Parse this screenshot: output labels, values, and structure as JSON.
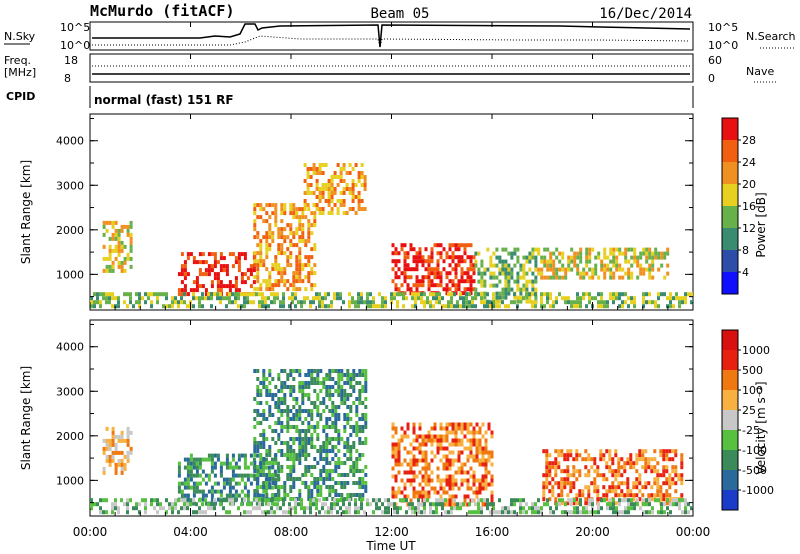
{
  "header": {
    "station": "McMurdo (fitACF)",
    "beam": "Beam 05",
    "date": "16/Dec/2014"
  },
  "status_panels": {
    "nsky_label": "N.Sky",
    "nsearch_label": "N.Search",
    "noise_left_ticks": [
      "10^5",
      "10^0"
    ],
    "noise_right_ticks": [
      "10^5",
      "10^0"
    ],
    "freq_label_line1": "Freq.",
    "freq_label_line2": "[MHz]",
    "freq_ticks": [
      "18",
      "8"
    ],
    "nave_label": "Nave",
    "nave_ticks": [
      "60",
      "0"
    ],
    "cpid_label": "CPID",
    "cpid_text": "normal (fast) 151 RF"
  },
  "chart_data": [
    {
      "type": "heatmap",
      "name": "power",
      "ylabel": "Slant Range [km]",
      "yticks": [
        "1000",
        "2000",
        "3000",
        "4000"
      ],
      "ylim": [
        200,
        4600
      ],
      "xlim_hours": [
        0,
        24
      ],
      "colorbar": {
        "label": "Power [dB]",
        "ticks": [
          "4",
          "8",
          "12",
          "16",
          "20",
          "24",
          "28"
        ],
        "colors": [
          "#1010ff",
          "#2c4ea8",
          "#3a8c70",
          "#68b04a",
          "#e8d020",
          "#f09020",
          "#f06010",
          "#e81010"
        ]
      },
      "regions": [
        {
          "t0": 0.5,
          "t1": 1.6,
          "r0": 1100,
          "r1": 2200,
          "level": 4
        },
        {
          "t0": 3.5,
          "t1": 6.5,
          "r0": 600,
          "r1": 1500,
          "level": 7
        },
        {
          "t0": 6.5,
          "t1": 9.0,
          "r0": 700,
          "r1": 2600,
          "level": 5
        },
        {
          "t0": 8.5,
          "t1": 11.0,
          "r0": 2400,
          "r1": 3500,
          "level": 5
        },
        {
          "t0": 12.0,
          "t1": 15.3,
          "r0": 600,
          "r1": 1700,
          "level": 7
        },
        {
          "t0": 15.3,
          "t1": 17.8,
          "r0": 400,
          "r1": 1600,
          "level": 3
        },
        {
          "t0": 17.8,
          "t1": 23.0,
          "r0": 900,
          "r1": 1600,
          "level": 4
        },
        {
          "t0": 0.0,
          "t1": 24.0,
          "r0": 250,
          "r1": 600,
          "level": 3
        }
      ]
    },
    {
      "type": "heatmap",
      "name": "velocity",
      "ylabel": "Slant Range [km]",
      "yticks": [
        "1000",
        "2000",
        "3000",
        "4000"
      ],
      "ylim": [
        200,
        4600
      ],
      "xlim_hours": [
        0,
        24
      ],
      "xticks": [
        "00:00",
        "04:00",
        "08:00",
        "12:00",
        "16:00",
        "20:00",
        "00:00"
      ],
      "xlabel": "Time UT",
      "colorbar": {
        "label": "Velocity [m s⁻¹]",
        "ticks": [
          "1000",
          "500",
          "100",
          "25",
          "-25",
          "-100",
          "-500",
          "-1000"
        ],
        "colors": [
          "#1a3cc8",
          "#2a6a9a",
          "#3a8a5a",
          "#58c040",
          "#c8c8c8",
          "#f8b040",
          "#f07810",
          "#e82010",
          "#d81010"
        ]
      },
      "regions": [
        {
          "t0": 0.5,
          "t1": 1.6,
          "r0": 1200,
          "r1": 2200,
          "level": 5
        },
        {
          "t0": 3.5,
          "t1": 7.5,
          "r0": 500,
          "r1": 1600,
          "level": 2
        },
        {
          "t0": 6.5,
          "t1": 11.0,
          "r0": 600,
          "r1": 3500,
          "level": 2
        },
        {
          "t0": 12.0,
          "t1": 16.0,
          "r0": 500,
          "r1": 2300,
          "level": 6
        },
        {
          "t0": 18.0,
          "t1": 23.5,
          "r0": 500,
          "r1": 1700,
          "level": 6
        },
        {
          "t0": 0.0,
          "t1": 24.0,
          "r0": 250,
          "r1": 600,
          "level": 3
        }
      ]
    }
  ]
}
